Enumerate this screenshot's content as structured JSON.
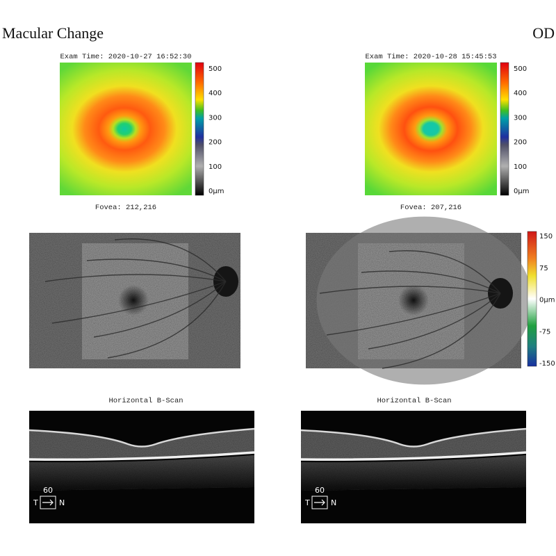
{
  "header": {
    "title": "Macular Change",
    "eye": "OD"
  },
  "exams": [
    {
      "exam_time": "Exam Time: 2020-10-27 16:52:30",
      "fovea": "Fovea: 212,216",
      "bscan_title": "Horizontal B-Scan"
    },
    {
      "exam_time": "Exam Time: 2020-10-28 15:45:53",
      "fovea": "Fovea: 207,216",
      "bscan_title": "Horizontal B-Scan"
    }
  ],
  "thickness_scale": [
    "500",
    "400",
    "300",
    "200",
    "100",
    "0μm"
  ],
  "difference_scale": [
    "150",
    "75",
    "0μm",
    "-75",
    "-150"
  ],
  "bscan_scale": {
    "length": "60",
    "left": "T",
    "right": "N"
  }
}
